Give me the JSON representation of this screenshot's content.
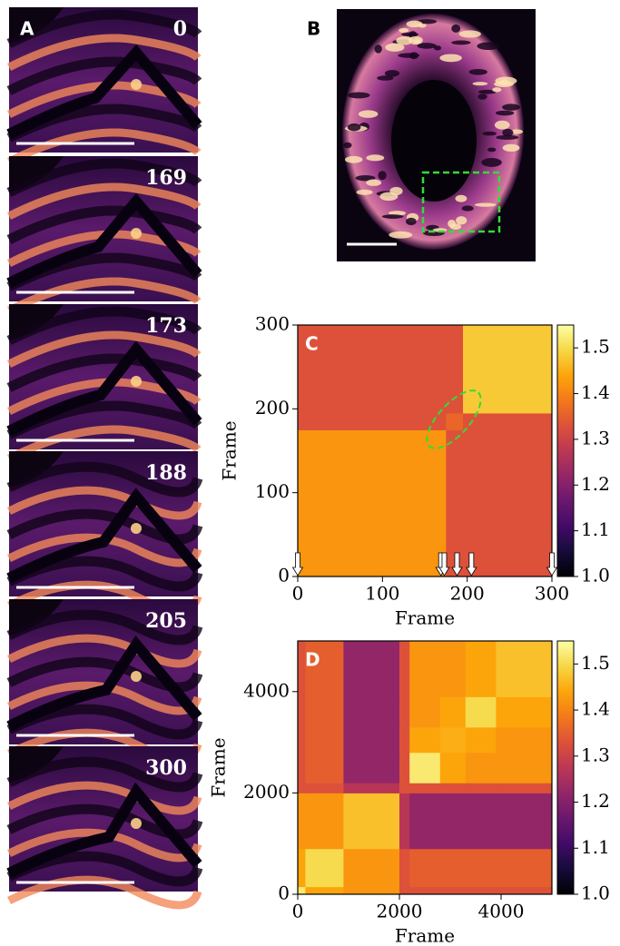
{
  "chart_data": [
    {
      "type": "image-strip",
      "label": "A",
      "frames": [
        0,
        169,
        173,
        188,
        205,
        300
      ]
    },
    {
      "type": "image",
      "label": "B"
    },
    {
      "type": "heatmap",
      "label": "C",
      "xlabel": "Frame",
      "ylabel": "Frame",
      "xlim": [
        0,
        300
      ],
      "ylim": [
        0,
        300
      ],
      "xticks": [
        0,
        100,
        200,
        300
      ],
      "yticks": [
        0,
        100,
        200,
        300
      ],
      "x_edges": [
        0,
        175,
        195,
        300
      ],
      "y_edges": [
        0,
        175,
        195,
        300
      ],
      "z": [
        [
          1.42,
          1.33,
          1.33
        ],
        [
          1.33,
          1.36,
          1.33
        ],
        [
          1.33,
          1.33,
          1.48
        ]
      ],
      "colormap": "inferno",
      "clim": [
        1.0,
        1.55
      ],
      "cticks": [
        {
          "value": 1.0,
          "label": "1.0"
        },
        1.1,
        1.2,
        1.3,
        1.4,
        1.5
      ],
      "arrows": [
        0,
        169,
        173,
        188,
        205,
        300
      ]
    },
    {
      "type": "heatmap",
      "label": "D",
      "xlabel": "Frame",
      "ylabel": "Frame",
      "xlim": [
        0,
        5000
      ],
      "ylim": [
        0,
        5000
      ],
      "xticks": [
        0,
        2000,
        4000
      ],
      "yticks": [
        0,
        2000,
        4000
      ],
      "x_edges": [
        0,
        150,
        900,
        2000,
        2200,
        2800,
        3300,
        3900,
        5000
      ],
      "y_edges": [
        0,
        150,
        900,
        2000,
        2200,
        2800,
        3300,
        3900,
        5000
      ],
      "z": [
        [
          1.52,
          1.44,
          1.42,
          1.33,
          1.33,
          1.33,
          1.33,
          1.33
        ],
        [
          1.44,
          1.5,
          1.42,
          1.33,
          1.35,
          1.35,
          1.35,
          1.35
        ],
        [
          1.42,
          1.42,
          1.47,
          1.27,
          1.22,
          1.22,
          1.22,
          1.22
        ],
        [
          1.33,
          1.33,
          1.27,
          1.33,
          1.33,
          1.33,
          1.33,
          1.33
        ],
        [
          1.33,
          1.35,
          1.22,
          1.33,
          1.52,
          1.44,
          1.42,
          1.42
        ],
        [
          1.33,
          1.35,
          1.22,
          1.33,
          1.44,
          1.45,
          1.44,
          1.42
        ],
        [
          1.33,
          1.35,
          1.22,
          1.33,
          1.42,
          1.44,
          1.5,
          1.44
        ],
        [
          1.33,
          1.35,
          1.22,
          1.33,
          1.42,
          1.42,
          1.44,
          1.47
        ]
      ],
      "colormap": "inferno",
      "clim": [
        1.0,
        1.55
      ],
      "cticks": [
        {
          "value": 1.0,
          "label": "1.0"
        },
        1.1,
        1.2,
        1.3,
        1.4,
        1.5
      ]
    }
  ]
}
